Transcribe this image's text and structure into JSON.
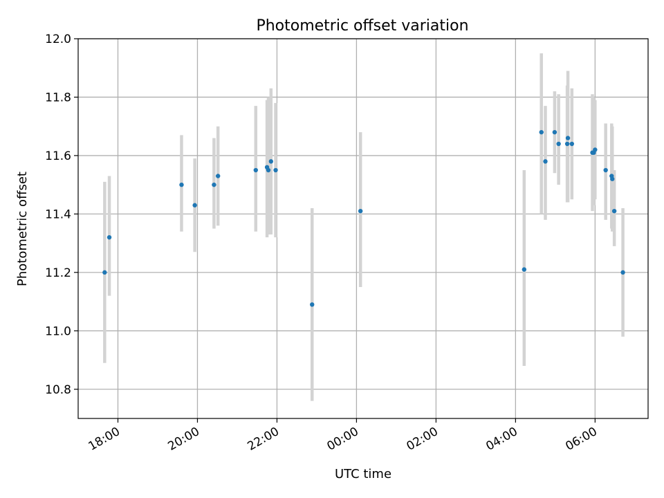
{
  "chart_data": {
    "type": "scatter",
    "title": "Photometric offset variation",
    "xlabel": "UTC time",
    "ylabel": "Photometric offset",
    "xlim": [
      "17:00",
      "07:20"
    ],
    "ylim": [
      10.7,
      12.0
    ],
    "x_ticks": [
      "18:00",
      "20:00",
      "22:00",
      "00:00",
      "02:00",
      "04:00",
      "06:00"
    ],
    "y_ticks": [
      "10.8",
      "11.0",
      "11.2",
      "11.4",
      "11.6",
      "11.8",
      "12.0"
    ],
    "grid": true,
    "marker_color": "#1f77b4",
    "errorbar_color": "#d3d3d3",
    "points": [
      {
        "t": "17:40",
        "y": 11.2,
        "lo": 10.89,
        "hi": 11.51
      },
      {
        "t": "17:47",
        "y": 11.32,
        "lo": 11.12,
        "hi": 11.53
      },
      {
        "t": "19:36",
        "y": 11.5,
        "lo": 11.34,
        "hi": 11.67
      },
      {
        "t": "19:56",
        "y": 11.43,
        "lo": 11.27,
        "hi": 11.59
      },
      {
        "t": "20:25",
        "y": 11.5,
        "lo": 11.35,
        "hi": 11.66
      },
      {
        "t": "20:31",
        "y": 11.53,
        "lo": 11.36,
        "hi": 11.7
      },
      {
        "t": "21:28",
        "y": 11.55,
        "lo": 11.34,
        "hi": 11.77
      },
      {
        "t": "21:45",
        "y": 11.56,
        "lo": 11.32,
        "hi": 11.79
      },
      {
        "t": "21:47",
        "y": 11.55,
        "lo": 11.33,
        "hi": 11.8
      },
      {
        "t": "21:51",
        "y": 11.58,
        "lo": 11.33,
        "hi": 11.83
      },
      {
        "t": "21:58",
        "y": 11.55,
        "lo": 11.32,
        "hi": 11.78
      },
      {
        "t": "22:53",
        "y": 11.09,
        "lo": 10.76,
        "hi": 11.42
      },
      {
        "t": "00:06",
        "y": 11.41,
        "lo": 11.15,
        "hi": 11.68
      },
      {
        "t": "04:13",
        "y": 11.21,
        "lo": 10.88,
        "hi": 11.55
      },
      {
        "t": "04:39",
        "y": 11.68,
        "lo": 11.4,
        "hi": 11.95
      },
      {
        "t": "04:45",
        "y": 11.58,
        "lo": 11.38,
        "hi": 11.77
      },
      {
        "t": "04:59",
        "y": 11.68,
        "lo": 11.54,
        "hi": 11.82
      },
      {
        "t": "05:05",
        "y": 11.64,
        "lo": 11.5,
        "hi": 11.81
      },
      {
        "t": "05:18",
        "y": 11.64,
        "lo": 11.44,
        "hi": 11.84
      },
      {
        "t": "05:19",
        "y": 11.66,
        "lo": 11.44,
        "hi": 11.89
      },
      {
        "t": "05:25",
        "y": 11.64,
        "lo": 11.45,
        "hi": 11.83
      },
      {
        "t": "05:56",
        "y": 11.61,
        "lo": 11.41,
        "hi": 11.81
      },
      {
        "t": "05:58",
        "y": 11.61,
        "lo": 11.43,
        "hi": 11.8
      },
      {
        "t": "06:00",
        "y": 11.62,
        "lo": 11.45,
        "hi": 11.79
      },
      {
        "t": "06:16",
        "y": 11.55,
        "lo": 11.38,
        "hi": 11.71
      },
      {
        "t": "06:25",
        "y": 11.53,
        "lo": 11.35,
        "hi": 11.71
      },
      {
        "t": "06:26",
        "y": 11.52,
        "lo": 11.34,
        "hi": 11.7
      },
      {
        "t": "06:29",
        "y": 11.41,
        "lo": 11.29,
        "hi": 11.55
      },
      {
        "t": "06:42",
        "y": 11.2,
        "lo": 10.98,
        "hi": 11.42
      }
    ]
  }
}
